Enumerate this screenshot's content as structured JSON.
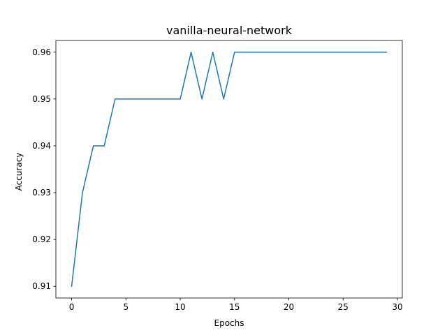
{
  "chart_data": {
    "type": "line",
    "title": "vanilla-neural-network",
    "xlabel": "Epochs",
    "ylabel": "Accuracy",
    "xlim": [
      -1.45,
      30.45
    ],
    "ylim": [
      0.9075,
      0.9625
    ],
    "xticks": [
      0,
      5,
      10,
      15,
      20,
      25,
      30
    ],
    "yticks": [
      0.91,
      0.92,
      0.93,
      0.94,
      0.95,
      0.96
    ],
    "grid": false,
    "series": [
      {
        "color": "#1f77b4",
        "x": [
          0,
          1,
          2,
          3,
          4,
          5,
          6,
          7,
          8,
          9,
          10,
          11,
          12,
          13,
          14,
          15,
          16,
          17,
          18,
          19,
          20,
          21,
          22,
          23,
          24,
          25,
          26,
          27,
          28,
          29
        ],
        "values": [
          0.91,
          0.93,
          0.94,
          0.94,
          0.95,
          0.95,
          0.95,
          0.95,
          0.95,
          0.95,
          0.95,
          0.96,
          0.95,
          0.96,
          0.95,
          0.96,
          0.96,
          0.96,
          0.96,
          0.96,
          0.96,
          0.96,
          0.96,
          0.96,
          0.96,
          0.96,
          0.96,
          0.96,
          0.96,
          0.96
        ]
      }
    ]
  }
}
